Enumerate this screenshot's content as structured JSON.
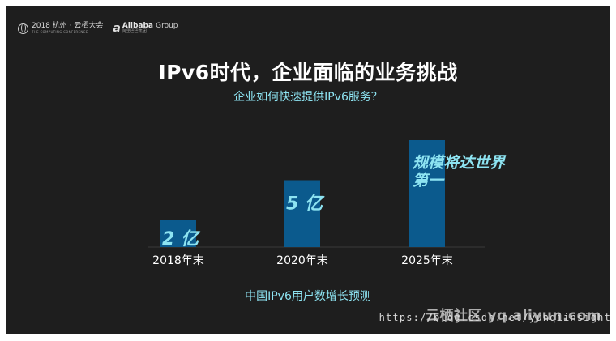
{
  "branding": {
    "conference_main": "2018 杭州 · 云栖大会",
    "conference_sub": "THE COMPUTING CONFERENCE",
    "alibaba_main": "Alibaba",
    "alibaba_group": "Group",
    "alibaba_sub": "阿里巴巴集团"
  },
  "slide": {
    "title": "IPv6时代，企业面临的业务挑战",
    "subtitle": "企业如何快速提供IPv6服务？",
    "footer_label": "中国IPv6用户数增长预测"
  },
  "colors": {
    "background": "#1e1e1e",
    "bar": "#0b5a8d",
    "bar_label": "#8de3f1",
    "axis_text": "#ffffff"
  },
  "chart_data": {
    "type": "bar",
    "categories": [
      "2018年末",
      "2020年末",
      "2025年末"
    ],
    "values": [
      2,
      5,
      8
    ],
    "value_unit": "亿",
    "data_labels": [
      "2 亿",
      "5 亿",
      "规模将达世界\n第一"
    ],
    "xlabel": "中国IPv6用户数增长预测",
    "grid": false
  },
  "watermark": {
    "logo_text": "云栖社区 yq.aliyun.com",
    "url_text": "https://blog.csdn.net/yunqiinsight"
  }
}
